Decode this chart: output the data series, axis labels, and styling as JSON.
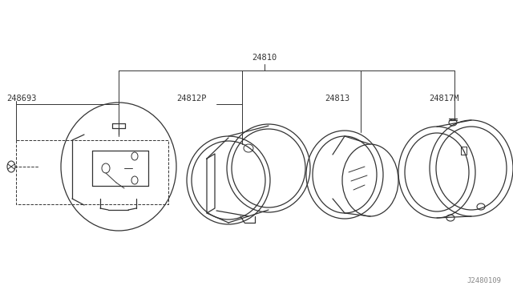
{
  "bg_color": "#ffffff",
  "line_color": "#333333",
  "text_color": "#333333",
  "fig_width": 6.4,
  "fig_height": 3.72,
  "dpi": 100,
  "watermark": "J2480109",
  "label_248693": "248693",
  "label_24810": "24810",
  "label_24812P": "24812P",
  "label_24813": "24813",
  "label_24817M": "24817M"
}
